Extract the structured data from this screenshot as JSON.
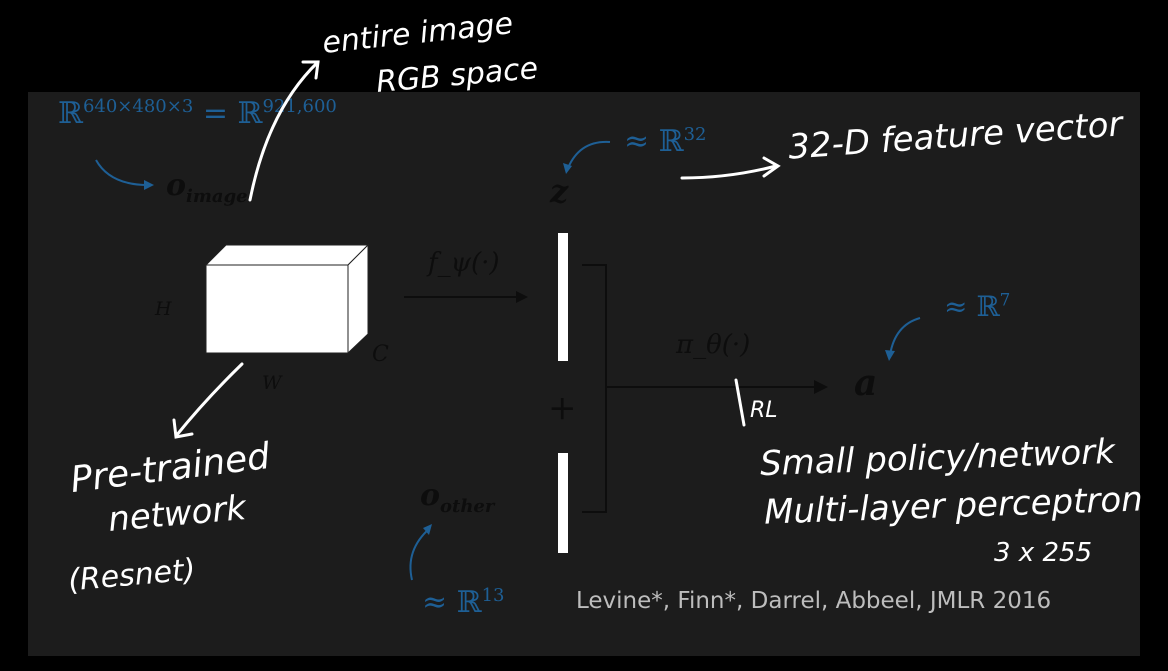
{
  "obs_image": {
    "space_lhs_base": "ℝ",
    "space_lhs_exp": "640×480×3",
    "equals": "=",
    "space_rhs_base": "ℝ",
    "space_rhs_exp": "921,600",
    "symbol": "o",
    "subscript": "image"
  },
  "encoder": {
    "dim_h": "H",
    "dim_w": "W",
    "dim_c": "C",
    "function_label": "f_ψ(·)"
  },
  "feature": {
    "symbol": "z",
    "space_base": "≈ ℝ",
    "space_exp": "32"
  },
  "combine": {
    "plus": "+"
  },
  "policy": {
    "function_label": "π_θ(·)",
    "action_symbol": "a",
    "action_space_base": "≈ ℝ",
    "action_space_exp": "7"
  },
  "obs_other": {
    "symbol": "o",
    "subscript": "other",
    "space_base": "≈ ℝ",
    "space_exp": "13"
  },
  "citation": "Levine*, Finn*, Darrel, Abbeel, JMLR 2016",
  "annotations": {
    "entire_image_line1": "entire image",
    "entire_image_line2": "RGB space",
    "feature_vector": "32-D feature vector",
    "pretrained_line1": "Pre-trained",
    "pretrained_line2": "network",
    "pretrained_line3": "(Resnet)",
    "rl": "RL",
    "policy_line1": "Small policy/network",
    "policy_line2": "Multi-layer perceptron",
    "policy_line3": "3 x 255"
  },
  "colors": {
    "background": "#000000",
    "slide": "#1c1c1c",
    "math_blue": "#1e5f95",
    "math_dark": "#0d0d0d",
    "handwriting": "#ffffff",
    "citation": "#bdbdbd"
  }
}
